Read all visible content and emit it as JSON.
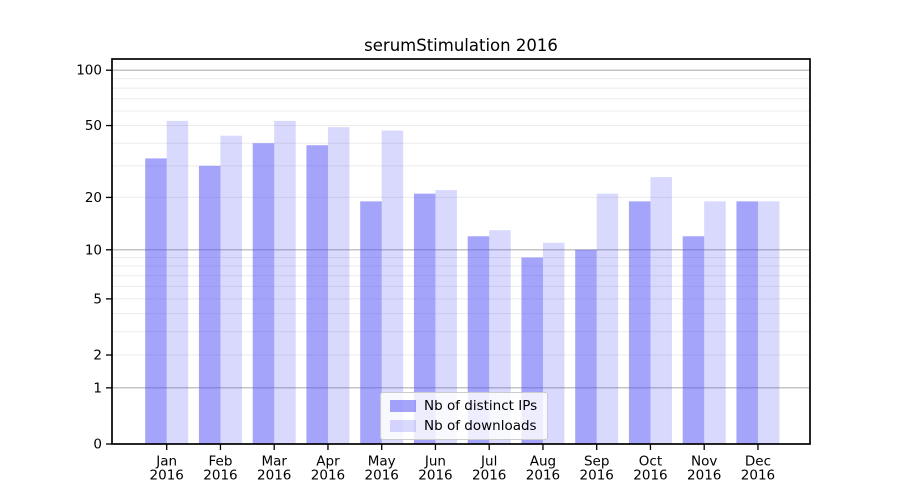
{
  "title": "serumStimulation 2016",
  "legend": {
    "items": [
      {
        "label": "Nb of distinct IPs",
        "series": "ips"
      },
      {
        "label": "Nb of downloads",
        "series": "downloads"
      }
    ]
  },
  "colors": {
    "bar_ips": "rgba(80,80,248,0.52)",
    "bar_downloads": "rgba(80,80,248,0.22)",
    "grid_major": "#b0b0b0",
    "grid_minor": "#ebebeb",
    "axis": "#000000",
    "text": "#000000",
    "legend_border": "#cccccc",
    "legend_bg": "rgba(255,255,255,0.8)"
  },
  "chart_data": {
    "type": "bar",
    "title": "serumStimulation 2016",
    "categories": [
      "Jan 2016",
      "Feb 2016",
      "Mar 2016",
      "Apr 2016",
      "May 2016",
      "Jun 2016",
      "Jul 2016",
      "Aug 2016",
      "Sep 2016",
      "Oct 2016",
      "Nov 2016",
      "Dec 2016"
    ],
    "x_tick_month": [
      "Jan",
      "Feb",
      "Mar",
      "Apr",
      "May",
      "Jun",
      "Jul",
      "Aug",
      "Sep",
      "Oct",
      "Nov",
      "Dec"
    ],
    "x_tick_year": "2016",
    "series": [
      {
        "name": "Nb of distinct IPs",
        "values": [
          33,
          30,
          40,
          39,
          19,
          21,
          12,
          9,
          10,
          19,
          12,
          19
        ]
      },
      {
        "name": "Nb of downloads",
        "values": [
          53,
          44,
          53,
          49,
          47,
          22,
          13,
          11,
          21,
          26,
          19,
          19
        ]
      }
    ],
    "xlabel": "",
    "ylabel": "",
    "yscale": "log1p",
    "ylim": [
      0,
      115
    ],
    "y_ticks": [
      0,
      1,
      2,
      5,
      10,
      20,
      50,
      100
    ],
    "y_major_gridlines": [
      1,
      10,
      100
    ],
    "y_minor_gridlines": [
      2,
      3,
      4,
      5,
      6,
      7,
      8,
      9,
      20,
      30,
      40,
      50,
      60,
      70,
      80,
      90
    ],
    "grid": true,
    "legend_position": "lower center"
  }
}
